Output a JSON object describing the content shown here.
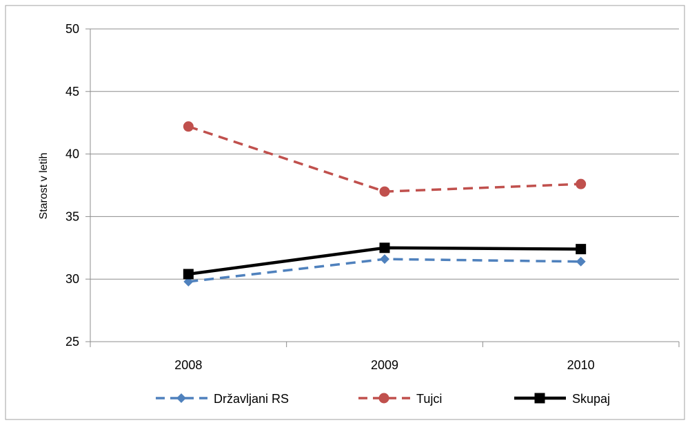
{
  "chart_data": {
    "type": "line",
    "title": "",
    "xlabel": "",
    "ylabel": "Starost v letih",
    "categories": [
      "2008",
      "2009",
      "2010"
    ],
    "ylim": [
      25,
      50
    ],
    "yticks": [
      "25",
      "30",
      "35",
      "40",
      "45",
      "50"
    ],
    "grid": true,
    "legend_position": "bottom",
    "series": [
      {
        "name": "Državljani RS",
        "values": [
          29.8,
          31.6,
          31.4
        ],
        "color": "#4F81BD",
        "line_style": "dashed",
        "marker": "diamond"
      },
      {
        "name": "Tujci",
        "values": [
          42.2,
          37.0,
          37.6
        ],
        "color": "#C0504D",
        "line_style": "dashed",
        "marker": "circle"
      },
      {
        "name": "Skupaj",
        "values": [
          30.4,
          32.5,
          32.4
        ],
        "color": "#000000",
        "line_style": "solid",
        "marker": "square"
      }
    ]
  }
}
